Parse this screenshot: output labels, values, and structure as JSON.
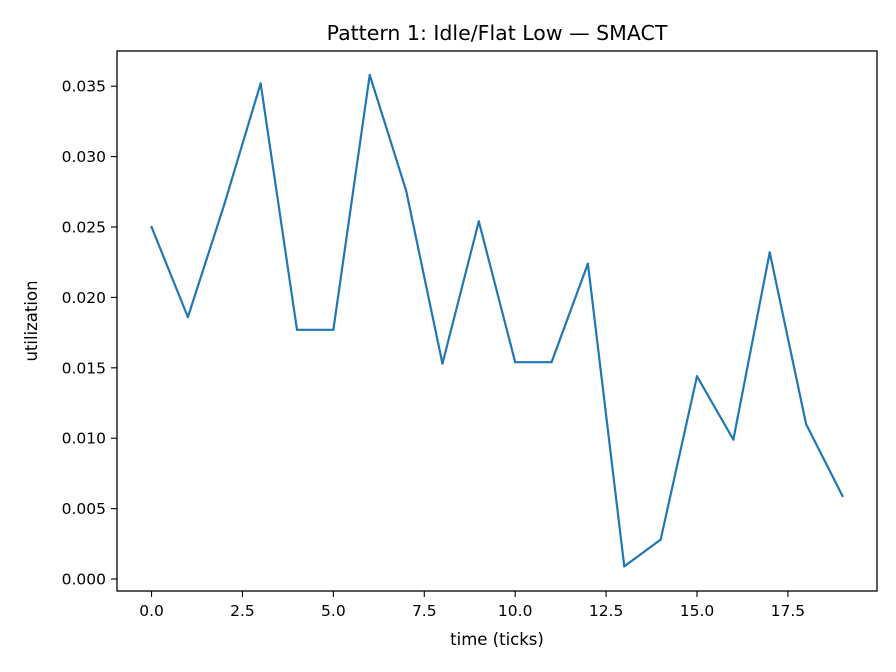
{
  "chart_data": {
    "type": "line",
    "title": "Pattern 1: Idle/Flat Low — SMACT",
    "xlabel": "time (ticks)",
    "ylabel": "utilization",
    "xlim": [
      -0.95,
      19.95
    ],
    "ylim": [
      -0.00085,
      0.0375
    ],
    "x_ticks": [
      0.0,
      2.5,
      5.0,
      7.5,
      10.0,
      12.5,
      15.0,
      17.5
    ],
    "x_tick_labels": [
      "0.0",
      "2.5",
      "5.0",
      "7.5",
      "10.0",
      "12.5",
      "15.0",
      "17.5"
    ],
    "y_ticks": [
      0.0,
      0.005,
      0.01,
      0.015,
      0.02,
      0.025,
      0.03,
      0.035
    ],
    "y_tick_labels": [
      "0.000",
      "0.005",
      "0.010",
      "0.015",
      "0.020",
      "0.025",
      "0.030",
      "0.035"
    ],
    "grid": false,
    "series": [
      {
        "color": "#1f77b4",
        "x": [
          0,
          1,
          2,
          3,
          4,
          5,
          6,
          7,
          8,
          9,
          10,
          11,
          12,
          13,
          14,
          15,
          16,
          17,
          18,
          19
        ],
        "values": [
          0.025,
          0.0186,
          0.0266,
          0.0352,
          0.0177,
          0.0177,
          0.0358,
          0.0276,
          0.0153,
          0.0254,
          0.0154,
          0.0154,
          0.0224,
          0.0009,
          0.0028,
          0.0144,
          0.0099,
          0.0232,
          0.011,
          0.0059
        ]
      }
    ]
  }
}
